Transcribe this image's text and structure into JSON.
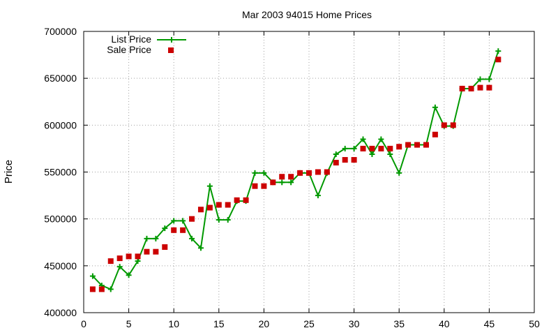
{
  "chart_data": {
    "type": "line",
    "title": "Mar 2003 94015 Home Prices",
    "xlabel": "",
    "ylabel": "Price",
    "xlim": [
      0,
      50
    ],
    "ylim": [
      400000,
      700000
    ],
    "xticks": [
      0,
      5,
      10,
      15,
      20,
      25,
      30,
      35,
      40,
      45,
      50
    ],
    "yticks": [
      400000,
      450000,
      500000,
      550000,
      600000,
      650000,
      700000
    ],
    "grid": true,
    "legend_position": "top-left",
    "series": [
      {
        "name": "List Price",
        "style": "line-plus",
        "color": "#009900",
        "x": [
          1,
          2,
          3,
          4,
          5,
          6,
          7,
          8,
          9,
          10,
          11,
          12,
          13,
          14,
          15,
          16,
          17,
          18,
          19,
          20,
          21,
          22,
          23,
          24,
          25,
          26,
          27,
          28,
          29,
          30,
          31,
          32,
          33,
          34,
          35,
          36,
          37,
          38,
          39,
          40,
          41,
          42,
          43,
          44,
          45,
          46
        ],
        "y": [
          439000,
          429000,
          425000,
          449000,
          440000,
          455000,
          479000,
          479000,
          490000,
          498000,
          498000,
          479000,
          469000,
          535000,
          499000,
          499000,
          519000,
          519000,
          549000,
          549000,
          539000,
          539000,
          539000,
          549000,
          549000,
          525000,
          549000,
          569000,
          575000,
          575000,
          585000,
          569000,
          585000,
          569000,
          549000,
          579000,
          579000,
          579000,
          619000,
          599000,
          599000,
          639000,
          639000,
          649000,
          649000,
          679000
        ]
      },
      {
        "name": "Sale Price",
        "style": "square-points",
        "color": "#cc0000",
        "x": [
          1,
          2,
          3,
          4,
          5,
          6,
          7,
          8,
          9,
          10,
          11,
          12,
          13,
          14,
          15,
          16,
          17,
          18,
          19,
          20,
          21,
          22,
          23,
          24,
          25,
          26,
          27,
          28,
          29,
          30,
          31,
          32,
          33,
          34,
          35,
          36,
          37,
          38,
          39,
          40,
          41,
          42,
          43,
          44,
          45,
          46
        ],
        "y": [
          425000,
          425000,
          455000,
          458000,
          460000,
          460000,
          465000,
          465000,
          470000,
          488000,
          488000,
          500000,
          510000,
          512000,
          515000,
          515000,
          520000,
          520000,
          535000,
          535000,
          539000,
          545000,
          545000,
          549000,
          549000,
          550000,
          550000,
          560000,
          563000,
          563000,
          575000,
          575000,
          575000,
          575000,
          577000,
          579000,
          579000,
          579000,
          590000,
          600000,
          600000,
          639000,
          639000,
          640000,
          640000,
          670000
        ]
      }
    ]
  }
}
